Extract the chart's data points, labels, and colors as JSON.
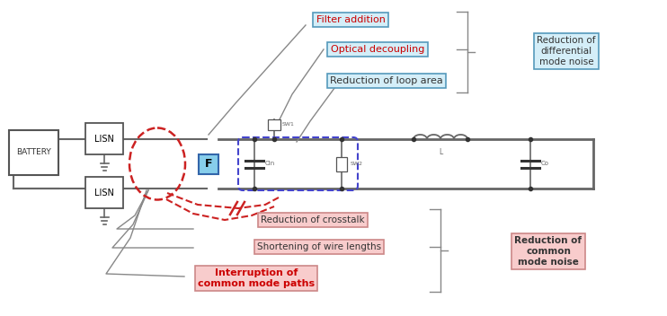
{
  "bg_color": "#ffffff",
  "fig_width": 7.42,
  "fig_height": 3.52,
  "dpi": 100,
  "labels": {
    "filter_addition": "Filter addition",
    "optical_decoupling": "Optical decoupling",
    "reduction_loop": "Reduction of loop area",
    "reduction_diff": "Reduction of\ndifferential\nmode noise",
    "reduction_crosstalk": "Reduction of crosstalk",
    "shortening_wire": "Shortening of wire lengths",
    "interruption_common": "Interruption of\ncommon mode paths",
    "reduction_common": "Reduction of\ncommon\nmode noise",
    "battery": "BATTERY",
    "lisn": "LISN",
    "F": "F",
    "SW1": "SW1",
    "SW2": "SW2",
    "Cin": "Cin",
    "L": "L",
    "Co": "Co"
  },
  "colors": {
    "dark_red_dashed": "#CC2222",
    "blue_dashed": "#4444CC",
    "gray_line": "#888888",
    "circuit_line": "#666666",
    "light_blue_fill": "#D4EEF8",
    "light_pink_fill": "#F8CCCC",
    "white": "#ffffff",
    "black": "#000000",
    "blue_box_edge": "#5599BB",
    "pink_box_edge": "#CC8888"
  }
}
